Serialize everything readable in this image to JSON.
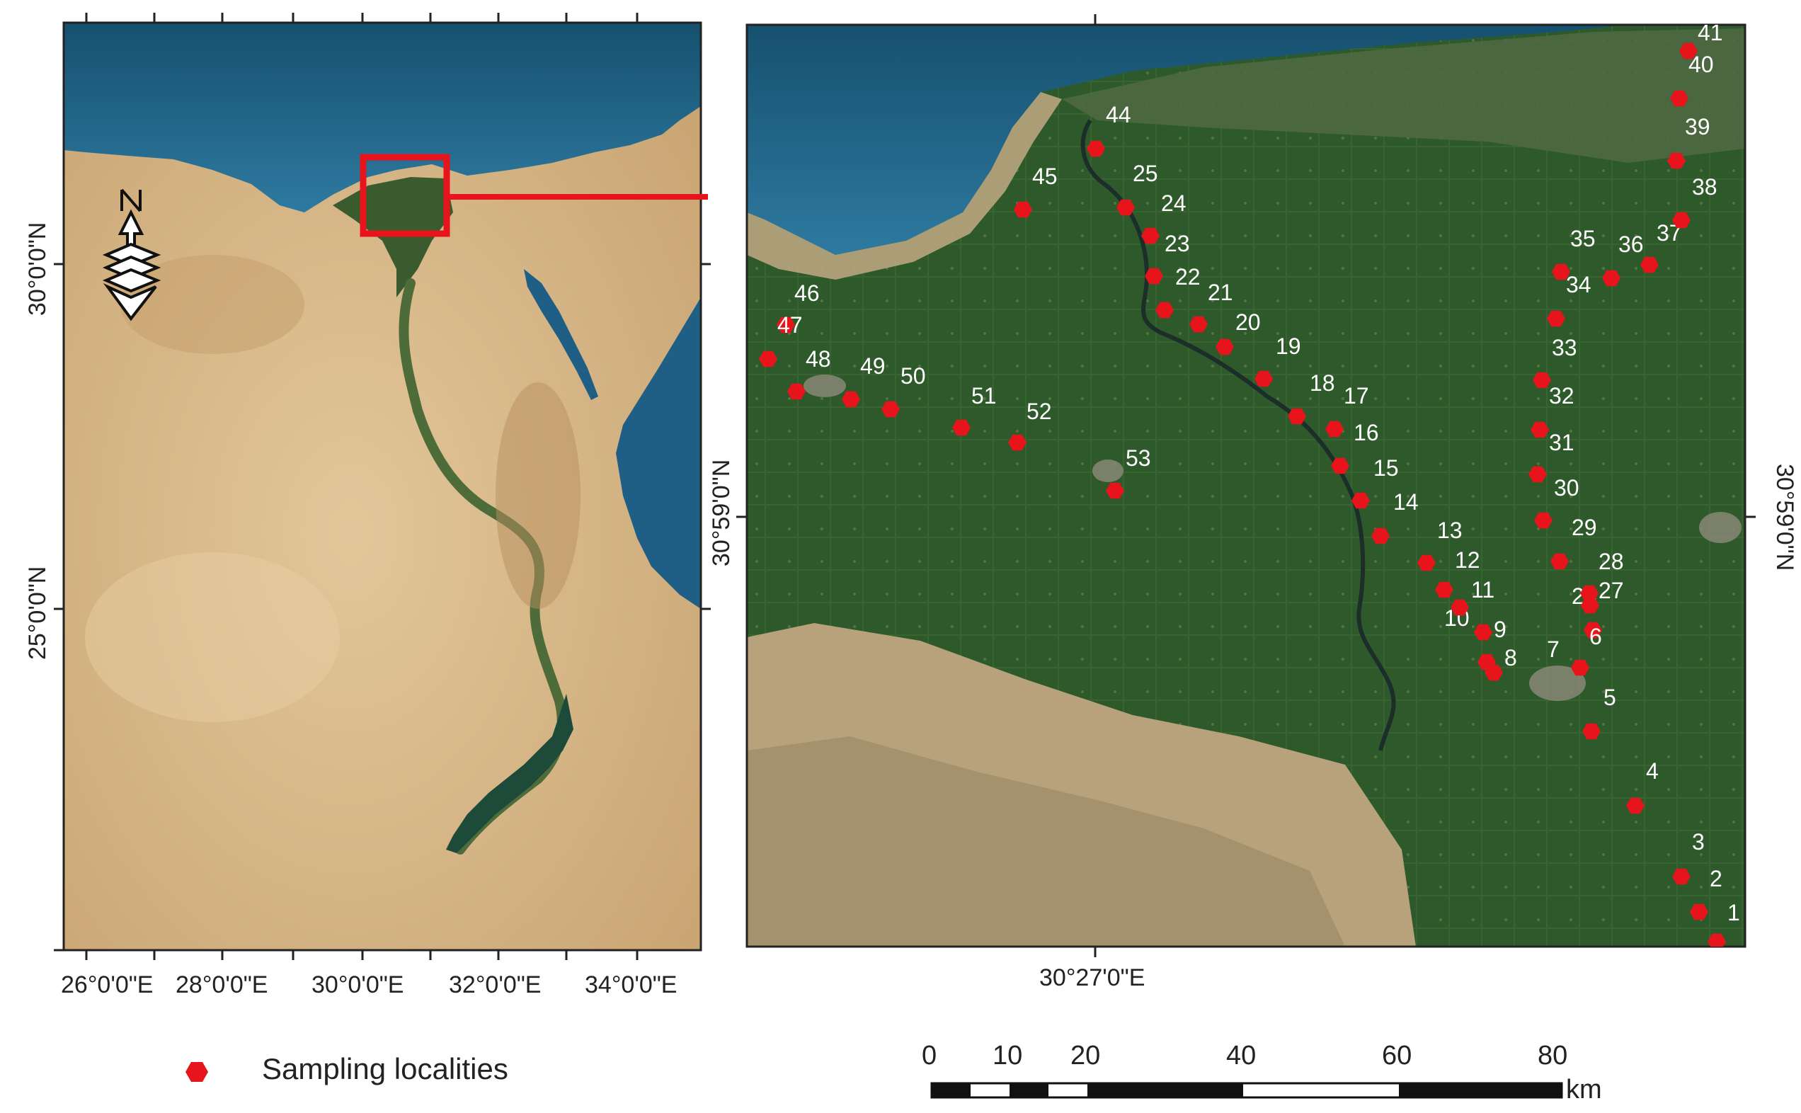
{
  "left_map": {
    "x_ticks": [
      "26°0'0\"E",
      "28°0'0\"E",
      "30°0'0\"E",
      "32°0'0\"E",
      "34°0'0\"E"
    ],
    "y_ticks": [
      "30°0'0\"N",
      "25°0'0\"N"
    ],
    "north_arrow_label": "N"
  },
  "right_map": {
    "x_tick": "30°27'0\"E",
    "y_tick_left": "30°59'0\"N",
    "y_tick_right": "30°59'0\"N",
    "sites": [
      {
        "id": "1"
      },
      {
        "id": "2"
      },
      {
        "id": "3"
      },
      {
        "id": "4"
      },
      {
        "id": "5"
      },
      {
        "id": "6"
      },
      {
        "id": "7"
      },
      {
        "id": "8"
      },
      {
        "id": "9"
      },
      {
        "id": "10"
      },
      {
        "id": "11"
      },
      {
        "id": "12"
      },
      {
        "id": "13"
      },
      {
        "id": "14"
      },
      {
        "id": "15"
      },
      {
        "id": "16"
      },
      {
        "id": "17"
      },
      {
        "id": "18"
      },
      {
        "id": "19"
      },
      {
        "id": "20"
      },
      {
        "id": "21"
      },
      {
        "id": "22"
      },
      {
        "id": "23"
      },
      {
        "id": "24"
      },
      {
        "id": "25"
      },
      {
        "id": "26"
      },
      {
        "id": "27"
      },
      {
        "id": "28"
      },
      {
        "id": "29"
      },
      {
        "id": "30"
      },
      {
        "id": "31"
      },
      {
        "id": "32"
      },
      {
        "id": "33"
      },
      {
        "id": "34"
      },
      {
        "id": "35"
      },
      {
        "id": "36"
      },
      {
        "id": "37"
      },
      {
        "id": "38"
      },
      {
        "id": "39"
      },
      {
        "id": "40"
      },
      {
        "id": "41"
      },
      {
        "id": "44"
      },
      {
        "id": "45"
      },
      {
        "id": "46"
      },
      {
        "id": "47"
      },
      {
        "id": "48"
      },
      {
        "id": "49"
      },
      {
        "id": "50"
      },
      {
        "id": "51"
      },
      {
        "id": "52"
      },
      {
        "id": "53"
      }
    ]
  },
  "legend": {
    "label": "Sampling localities",
    "marker_color": "#e8141b"
  },
  "scale_bar": {
    "ticks": [
      "0",
      "10",
      "20",
      "40",
      "60",
      "80"
    ],
    "unit": "km"
  },
  "colors": {
    "sea": "#1f5f86",
    "desert": "#d8b98a",
    "farmland": "#2f5a2c",
    "marker": "#e8141b",
    "inset_box": "#e8141b"
  }
}
